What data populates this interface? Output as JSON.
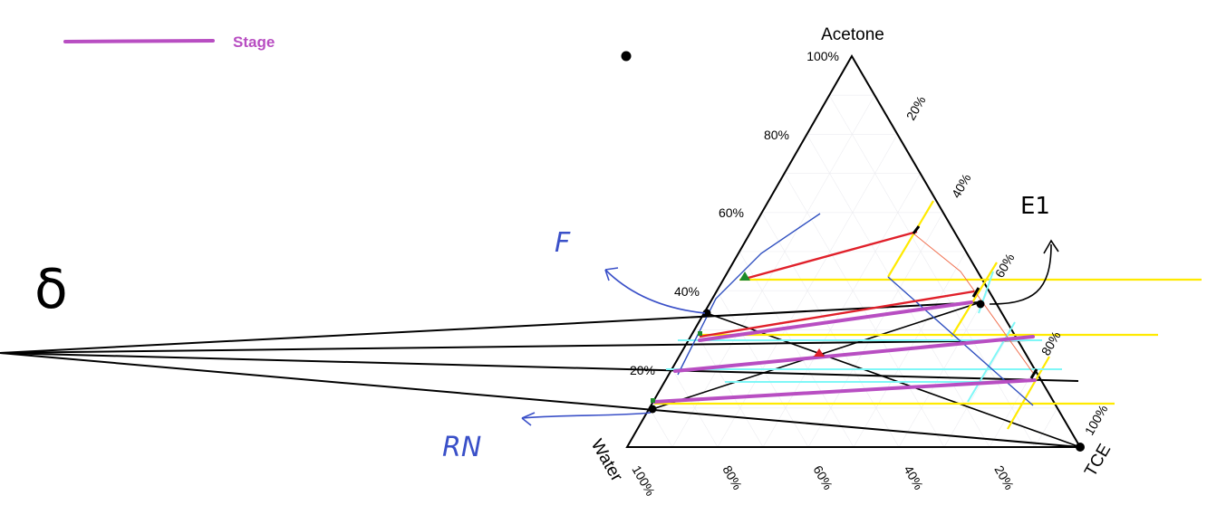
{
  "legend": {
    "label": "Stage",
    "color": "#b84ec2"
  },
  "vertices": {
    "top": "Acetone",
    "left": "Water",
    "right": "TCE"
  },
  "ticks": {
    "left_edge": [
      "100%",
      "80%",
      "60%",
      "40%",
      "20%"
    ],
    "right_edge": [
      "20%",
      "40%",
      "60%",
      "80%",
      "100%"
    ],
    "bottom_edge": [
      "100%",
      "80%",
      "60%",
      "40%",
      "20%"
    ]
  },
  "annotations": {
    "e1": "E1",
    "f": "F",
    "rn": "RN",
    "delta": "δ"
  },
  "colors": {
    "stage": "#b84ec2",
    "tie_yellow": "#ffea00",
    "tie_cyan": "#7ff7f7",
    "red": "#e0202a",
    "blue": "#3050c0",
    "black": "#000000",
    "pen_blue": "#3a50c8"
  }
}
